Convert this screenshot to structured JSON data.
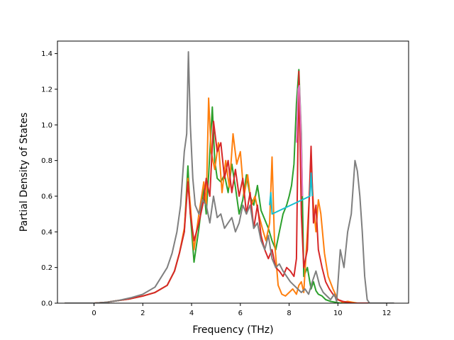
{
  "chart_data": {
    "type": "line",
    "title": "",
    "xlabel": "Frequency (THz)",
    "ylabel": "Partial Density of States",
    "xlim": [
      -1.5,
      12.9
    ],
    "ylim": [
      0,
      1.47
    ],
    "xticks": [
      0,
      2,
      4,
      6,
      8,
      10,
      12
    ],
    "yticks": [
      0.0,
      0.2,
      0.4,
      0.6,
      0.8,
      1.0,
      1.2,
      1.4
    ],
    "xtick_labels": [
      "0",
      "2",
      "4",
      "6",
      "8",
      "10",
      "12"
    ],
    "ytick_labels": [
      "0.0",
      "0.2",
      "0.4",
      "0.6",
      "0.8",
      "1.0",
      "1.2",
      "1.4"
    ],
    "grid": false,
    "legend": "none",
    "series": [
      {
        "color": "#2ca02c",
        "x": [
          -1.2,
          0,
          0.5,
          1,
          1.5,
          2,
          2.5,
          3,
          3.3,
          3.5,
          3.7,
          3.85,
          3.95,
          4.1,
          4.3,
          4.5,
          4.6,
          4.7,
          4.85,
          4.95,
          5.05,
          5.2,
          5.35,
          5.5,
          5.65,
          5.8,
          5.95,
          6.1,
          6.25,
          6.4,
          6.55,
          6.7,
          6.85,
          7.0,
          7.15,
          7.3,
          7.45,
          7.6,
          7.75,
          7.9,
          8.0,
          8.1,
          8.2,
          8.3,
          8.4,
          8.5,
          8.6,
          8.75,
          8.9,
          9.0,
          9.1,
          9.2,
          9.35,
          9.5,
          9.7,
          9.9,
          10.1,
          10.3,
          10.5,
          10.7,
          10.9,
          11.1,
          11.3,
          12.3
        ],
        "y": [
          0,
          0,
          0.005,
          0.015,
          0.025,
          0.04,
          0.06,
          0.1,
          0.18,
          0.28,
          0.4,
          0.77,
          0.5,
          0.23,
          0.42,
          0.65,
          0.5,
          0.72,
          1.1,
          0.8,
          0.7,
          0.68,
          0.72,
          0.62,
          0.78,
          0.65,
          0.5,
          0.58,
          0.72,
          0.6,
          0.55,
          0.66,
          0.52,
          0.47,
          0.42,
          0.35,
          0.3,
          0.4,
          0.5,
          0.55,
          0.6,
          0.66,
          0.78,
          1.12,
          1.31,
          0.95,
          0.15,
          0.2,
          0.08,
          0.12,
          0.07,
          0.05,
          0.04,
          0.02,
          0.01,
          0.005,
          0,
          0,
          0.005,
          0,
          0,
          0,
          0,
          0
        ]
      },
      {
        "color": "#ff7f0e",
        "x": [
          -1.2,
          0,
          0.5,
          1,
          1.5,
          2,
          2.5,
          3,
          3.3,
          3.5,
          3.7,
          3.85,
          3.95,
          4.1,
          4.3,
          4.5,
          4.6,
          4.7,
          4.8,
          4.95,
          5.1,
          5.25,
          5.4,
          5.55,
          5.7,
          5.85,
          6.0,
          6.15,
          6.3,
          6.45,
          6.6,
          6.75,
          6.9,
          7.05,
          7.2,
          7.3,
          7.4,
          7.55,
          7.7,
          7.85,
          8.0,
          8.15,
          8.3,
          8.4,
          8.5,
          8.6,
          8.75,
          8.9,
          9.0,
          9.1,
          9.2,
          9.3,
          9.45,
          9.6,
          9.8,
          10.0,
          10.2,
          10.4,
          10.6,
          10.8,
          11.0,
          11.2,
          12.3
        ],
        "y": [
          0,
          0,
          0.005,
          0.015,
          0.025,
          0.04,
          0.06,
          0.1,
          0.18,
          0.28,
          0.42,
          0.7,
          0.55,
          0.3,
          0.5,
          0.68,
          0.55,
          1.15,
          0.85,
          0.75,
          0.9,
          0.62,
          0.8,
          0.65,
          0.95,
          0.78,
          0.85,
          0.6,
          0.72,
          0.55,
          0.6,
          0.5,
          0.42,
          0.35,
          0.45,
          0.82,
          0.35,
          0.1,
          0.05,
          0.04,
          0.06,
          0.08,
          0.05,
          0.1,
          0.12,
          0.06,
          0.4,
          0.78,
          0.55,
          0.4,
          0.58,
          0.5,
          0.28,
          0.15,
          0.08,
          0.02,
          0.005,
          0.01,
          0.005,
          0,
          0,
          0,
          0
        ]
      },
      {
        "color": "#d62728",
        "x": [
          -1.2,
          0,
          0.5,
          1,
          1.5,
          2,
          2.5,
          3,
          3.3,
          3.5,
          3.7,
          3.85,
          3.95,
          4.1,
          4.3,
          4.5,
          4.6,
          4.75,
          4.9,
          5.05,
          5.2,
          5.35,
          5.5,
          5.65,
          5.8,
          5.95,
          6.1,
          6.25,
          6.4,
          6.55,
          6.7,
          6.85,
          7.0,
          7.15,
          7.3,
          7.45,
          7.6,
          7.75,
          7.9,
          8.05,
          8.2,
          8.3,
          8.4,
          8.5,
          8.6,
          8.75,
          8.9,
          9.0,
          9.1,
          9.2,
          9.35,
          9.5,
          9.65,
          9.8,
          10.0,
          10.2,
          10.4,
          10.6,
          10.75,
          10.9,
          11.1,
          11.3,
          12.3
        ],
        "y": [
          0,
          0,
          0.005,
          0.015,
          0.025,
          0.04,
          0.06,
          0.1,
          0.18,
          0.28,
          0.4,
          0.68,
          0.5,
          0.35,
          0.45,
          0.58,
          0.7,
          0.6,
          1.02,
          0.85,
          0.9,
          0.7,
          0.8,
          0.62,
          0.75,
          0.6,
          0.7,
          0.5,
          0.62,
          0.42,
          0.55,
          0.38,
          0.3,
          0.25,
          0.3,
          0.2,
          0.18,
          0.15,
          0.2,
          0.18,
          0.15,
          0.25,
          1.3,
          0.5,
          0.2,
          0.3,
          0.88,
          0.45,
          0.55,
          0.3,
          0.2,
          0.12,
          0.08,
          0.05,
          0.02,
          0.01,
          0.005,
          0,
          0,
          0,
          0,
          0,
          0
        ]
      },
      {
        "color": "#7f7f7f",
        "x": [
          -1.2,
          0,
          0.5,
          1,
          1.5,
          2,
          2.5,
          3,
          3.2,
          3.4,
          3.55,
          3.7,
          3.8,
          3.87,
          3.95,
          4.05,
          4.15,
          4.3,
          4.45,
          4.6,
          4.75,
          4.9,
          5.05,
          5.2,
          5.35,
          5.5,
          5.65,
          5.8,
          5.95,
          6.1,
          6.25,
          6.4,
          6.55,
          6.7,
          6.85,
          7.0,
          7.15,
          7.3,
          7.45,
          7.6,
          7.75,
          7.9,
          8.05,
          8.2,
          8.35,
          8.5,
          8.65,
          8.8,
          8.95,
          9.1,
          9.25,
          9.4,
          9.55,
          9.7,
          9.85,
          9.95,
          10.1,
          10.25,
          10.4,
          10.55,
          10.7,
          10.8,
          10.9,
          11.0,
          11.1,
          11.2,
          11.3,
          12.3
        ],
        "y": [
          0,
          0,
          0.005,
          0.015,
          0.03,
          0.05,
          0.09,
          0.2,
          0.28,
          0.4,
          0.55,
          0.85,
          0.95,
          1.41,
          1.0,
          0.7,
          0.55,
          0.5,
          0.58,
          0.55,
          0.45,
          0.6,
          0.48,
          0.5,
          0.42,
          0.45,
          0.48,
          0.4,
          0.45,
          0.55,
          0.5,
          0.55,
          0.42,
          0.45,
          0.35,
          0.3,
          0.38,
          0.25,
          0.2,
          0.22,
          0.18,
          0.15,
          0.12,
          0.1,
          0.08,
          0.06,
          0.08,
          0.05,
          0.12,
          0.18,
          0.1,
          0.06,
          0.04,
          0.02,
          0.05,
          0.01,
          0.3,
          0.2,
          0.4,
          0.5,
          0.8,
          0.74,
          0.6,
          0.4,
          0.15,
          0.02,
          0,
          0
        ]
      },
      {
        "color": "#e377c2",
        "x": [
          8.3,
          8.37,
          8.42,
          8.48,
          8.55
        ],
        "y": [
          0.9,
          1.2,
          1.22,
          1.0,
          0.6
        ]
      },
      {
        "color": "#17becf",
        "x": [
          7.2,
          7.25,
          7.3,
          8.85,
          8.9,
          8.95
        ],
        "y": [
          0.55,
          0.62,
          0.5,
          0.6,
          0.73,
          0.6
        ]
      }
    ]
  }
}
